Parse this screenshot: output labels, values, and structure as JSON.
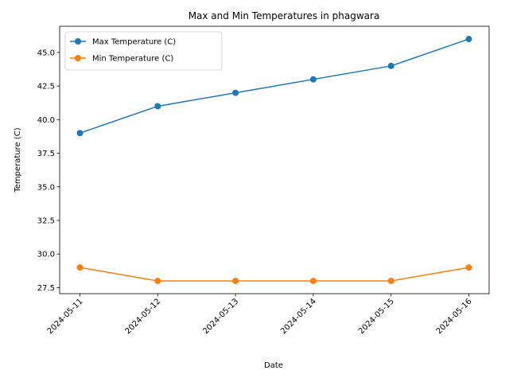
{
  "chart_data": {
    "type": "line",
    "title": "Max and Min Temperatures in phagwara",
    "xlabel": "Date",
    "ylabel": "Temperature (C)",
    "categories": [
      "2024-05-11",
      "2024-05-12",
      "2024-05-13",
      "2024-05-14",
      "2024-05-15",
      "2024-05-16"
    ],
    "yticks": [
      "27.5",
      "30.0",
      "32.5",
      "35.0",
      "37.5",
      "40.0",
      "42.5",
      "45.0"
    ],
    "ylim": [
      27.05,
      46.95
    ],
    "grid": false,
    "legend_position": "upper left",
    "series": [
      {
        "name": "Max Temperature (C)",
        "color": "#1f77b4",
        "marker": "circle",
        "values": [
          39,
          41,
          42,
          43,
          44,
          46
        ]
      },
      {
        "name": "Min Temperature (C)",
        "color": "#ff7f0e",
        "marker": "circle",
        "values": [
          29,
          28,
          28,
          28,
          28,
          29
        ]
      }
    ]
  }
}
